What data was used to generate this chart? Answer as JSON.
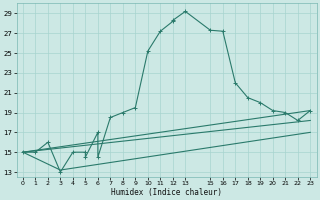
{
  "xlabel": "Humidex (Indice chaleur)",
  "line_color": "#2a7a6b",
  "bg_color": "#cce8e4",
  "grid_color": "#a8d4cf",
  "xlim": [
    -0.5,
    23.5
  ],
  "ylim": [
    12.5,
    30.0
  ],
  "xticks": [
    0,
    1,
    2,
    3,
    4,
    5,
    6,
    7,
    8,
    9,
    10,
    11,
    12,
    13,
    15,
    16,
    17,
    18,
    19,
    20,
    21,
    22,
    23
  ],
  "yticks": [
    13,
    15,
    17,
    19,
    21,
    23,
    25,
    27,
    29
  ],
  "curve_main_x": [
    0,
    1,
    2,
    3,
    4,
    5,
    5,
    6,
    6,
    7,
    8,
    9,
    10,
    11,
    12,
    12,
    13,
    15,
    16,
    17,
    18,
    19,
    20,
    21,
    22,
    23
  ],
  "curve_main_y": [
    15,
    15,
    16,
    13,
    15,
    15,
    14.5,
    17,
    14.5,
    18.5,
    19,
    19.5,
    25.2,
    27.2,
    28.2,
    28.3,
    29.2,
    27.3,
    27.2,
    22,
    20.5,
    20.0,
    19.2,
    19.0,
    18.2,
    19.2
  ],
  "curve_line1_x": [
    0,
    23
  ],
  "curve_line1_y": [
    15,
    19.2
  ],
  "curve_line2_x": [
    0,
    23
  ],
  "curve_line2_y": [
    15,
    18.2
  ],
  "curve_line3_x": [
    0,
    3,
    23
  ],
  "curve_line3_y": [
    15,
    13.2,
    17.0
  ]
}
